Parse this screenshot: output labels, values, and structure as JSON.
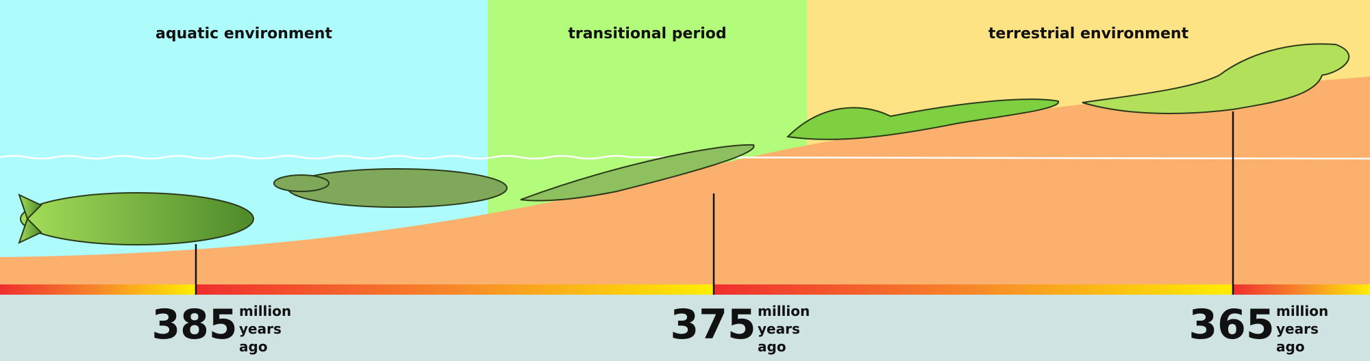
{
  "zones": [
    {
      "label": "aquatic environment"
    },
    {
      "label": "transitional period"
    },
    {
      "label": "terrestrial environment"
    }
  ],
  "timeline": [
    {
      "number": "385",
      "unit": [
        "million",
        "years",
        "ago"
      ]
    },
    {
      "number": "375",
      "unit": [
        "million",
        "years",
        "ago"
      ]
    },
    {
      "number": "365",
      "unit": [
        "million",
        "years",
        "ago"
      ]
    }
  ]
}
